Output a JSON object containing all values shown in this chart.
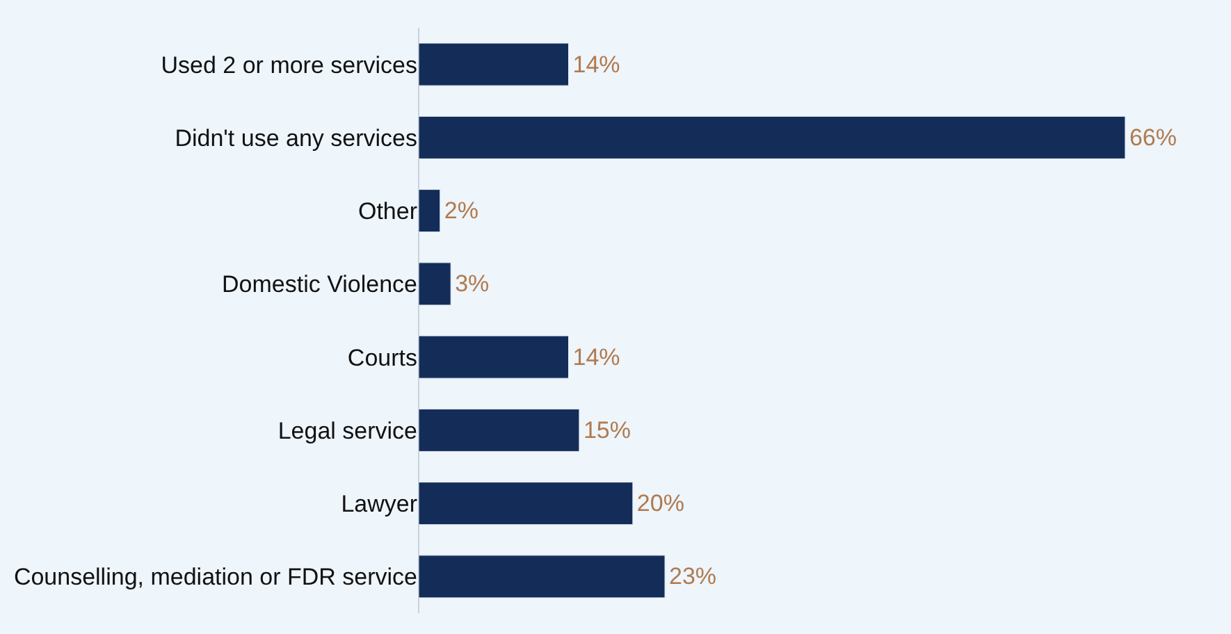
{
  "chart_data": {
    "type": "bar",
    "orientation": "horizontal",
    "categories": [
      "Used 2 or more services",
      "Didn't use any services",
      "Other",
      "Domestic Violence",
      "Courts",
      "Legal service",
      "Lawyer",
      "Counselling, mediation or FDR service"
    ],
    "values": [
      14,
      66,
      2,
      3,
      14,
      15,
      20,
      23
    ],
    "value_labels": [
      "14%",
      "66%",
      "2%",
      "3%",
      "14%",
      "15%",
      "20%",
      "23%"
    ],
    "color": "#142d58",
    "grid": false,
    "legend": false
  }
}
